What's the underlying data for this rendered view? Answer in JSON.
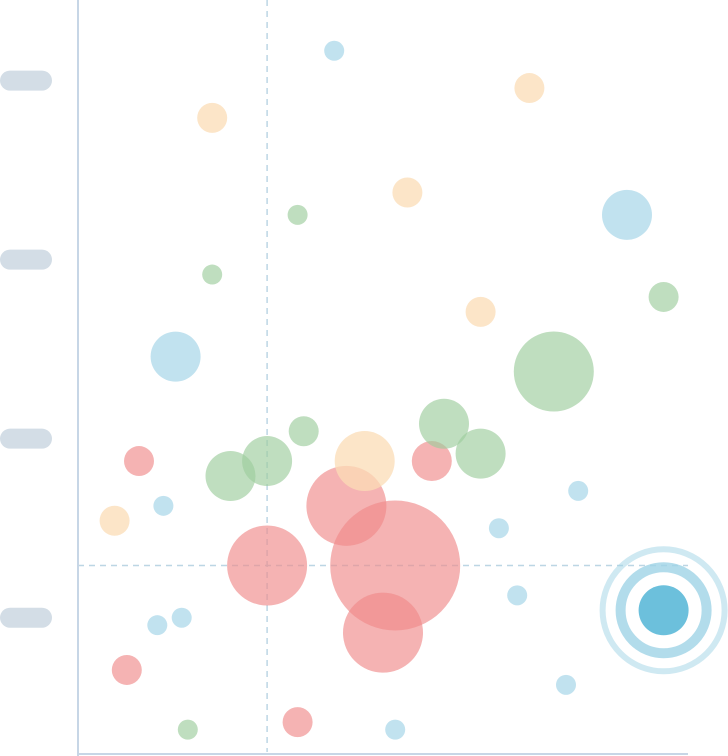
{
  "colors": {
    "red": "#ef8a8a",
    "green": "#9ccc9c",
    "blue": "#9fd3e6",
    "orange": "#fbdcb6",
    "highlight": "#6cc0dc",
    "axis": "#c7d6e6",
    "reference_line": "#bcd6e4",
    "label_placeholder": "#d3dde6"
  },
  "chart_data": {
    "type": "scatter",
    "variant": "bubble",
    "title": "",
    "xlabel": "",
    "ylabel": "",
    "xlim": [
      0,
      100
    ],
    "ylim": [
      0,
      100
    ],
    "grid": false,
    "y_tick_values": [
      18,
      42,
      66,
      90
    ],
    "y_tick_labels": [
      "",
      "",
      "",
      ""
    ],
    "reference_lines": {
      "x": 31,
      "y": 25
    },
    "series": [
      {
        "color": "red",
        "points": [
          {
            "x": 10,
            "y": 39,
            "r": 3
          },
          {
            "x": 31,
            "y": 25,
            "r": 8
          },
          {
            "x": 44,
            "y": 33,
            "r": 8
          },
          {
            "x": 52,
            "y": 25,
            "r": 13
          },
          {
            "x": 50,
            "y": 16,
            "r": 8
          },
          {
            "x": 58,
            "y": 39,
            "r": 4
          },
          {
            "x": 8,
            "y": 11,
            "r": 3
          },
          {
            "x": 36,
            "y": 4,
            "r": 3
          }
        ]
      },
      {
        "color": "green",
        "points": [
          {
            "x": 36,
            "y": 72,
            "r": 2
          },
          {
            "x": 22,
            "y": 64,
            "r": 2
          },
          {
            "x": 96,
            "y": 61,
            "r": 3
          },
          {
            "x": 78,
            "y": 51,
            "r": 8
          },
          {
            "x": 37,
            "y": 43,
            "r": 3
          },
          {
            "x": 60,
            "y": 44,
            "r": 5
          },
          {
            "x": 66,
            "y": 40,
            "r": 5
          },
          {
            "x": 25,
            "y": 37,
            "r": 5
          },
          {
            "x": 31,
            "y": 39,
            "r": 5
          },
          {
            "x": 18,
            "y": 3,
            "r": 2
          }
        ]
      },
      {
        "color": "blue",
        "points": [
          {
            "x": 42,
            "y": 94,
            "r": 2
          },
          {
            "x": 90,
            "y": 72,
            "r": 5
          },
          {
            "x": 16,
            "y": 53,
            "r": 5
          },
          {
            "x": 82,
            "y": 35,
            "r": 2
          },
          {
            "x": 14,
            "y": 33,
            "r": 2
          },
          {
            "x": 69,
            "y": 30,
            "r": 2
          },
          {
            "x": 72,
            "y": 21,
            "r": 2
          },
          {
            "x": 13,
            "y": 17,
            "r": 2
          },
          {
            "x": 17,
            "y": 18,
            "r": 2
          },
          {
            "x": 80,
            "y": 9,
            "r": 2
          },
          {
            "x": 52,
            "y": 3,
            "r": 2
          }
        ]
      },
      {
        "color": "orange",
        "points": [
          {
            "x": 74,
            "y": 89,
            "r": 3
          },
          {
            "x": 22,
            "y": 85,
            "r": 3
          },
          {
            "x": 54,
            "y": 75,
            "r": 3
          },
          {
            "x": 66,
            "y": 59,
            "r": 3
          },
          {
            "x": 47,
            "y": 39,
            "r": 6
          },
          {
            "x": 6,
            "y": 31,
            "r": 3
          }
        ]
      }
    ],
    "highlighted_point": {
      "x": 96,
      "y": 19,
      "r": 5,
      "color": "highlight"
    }
  }
}
